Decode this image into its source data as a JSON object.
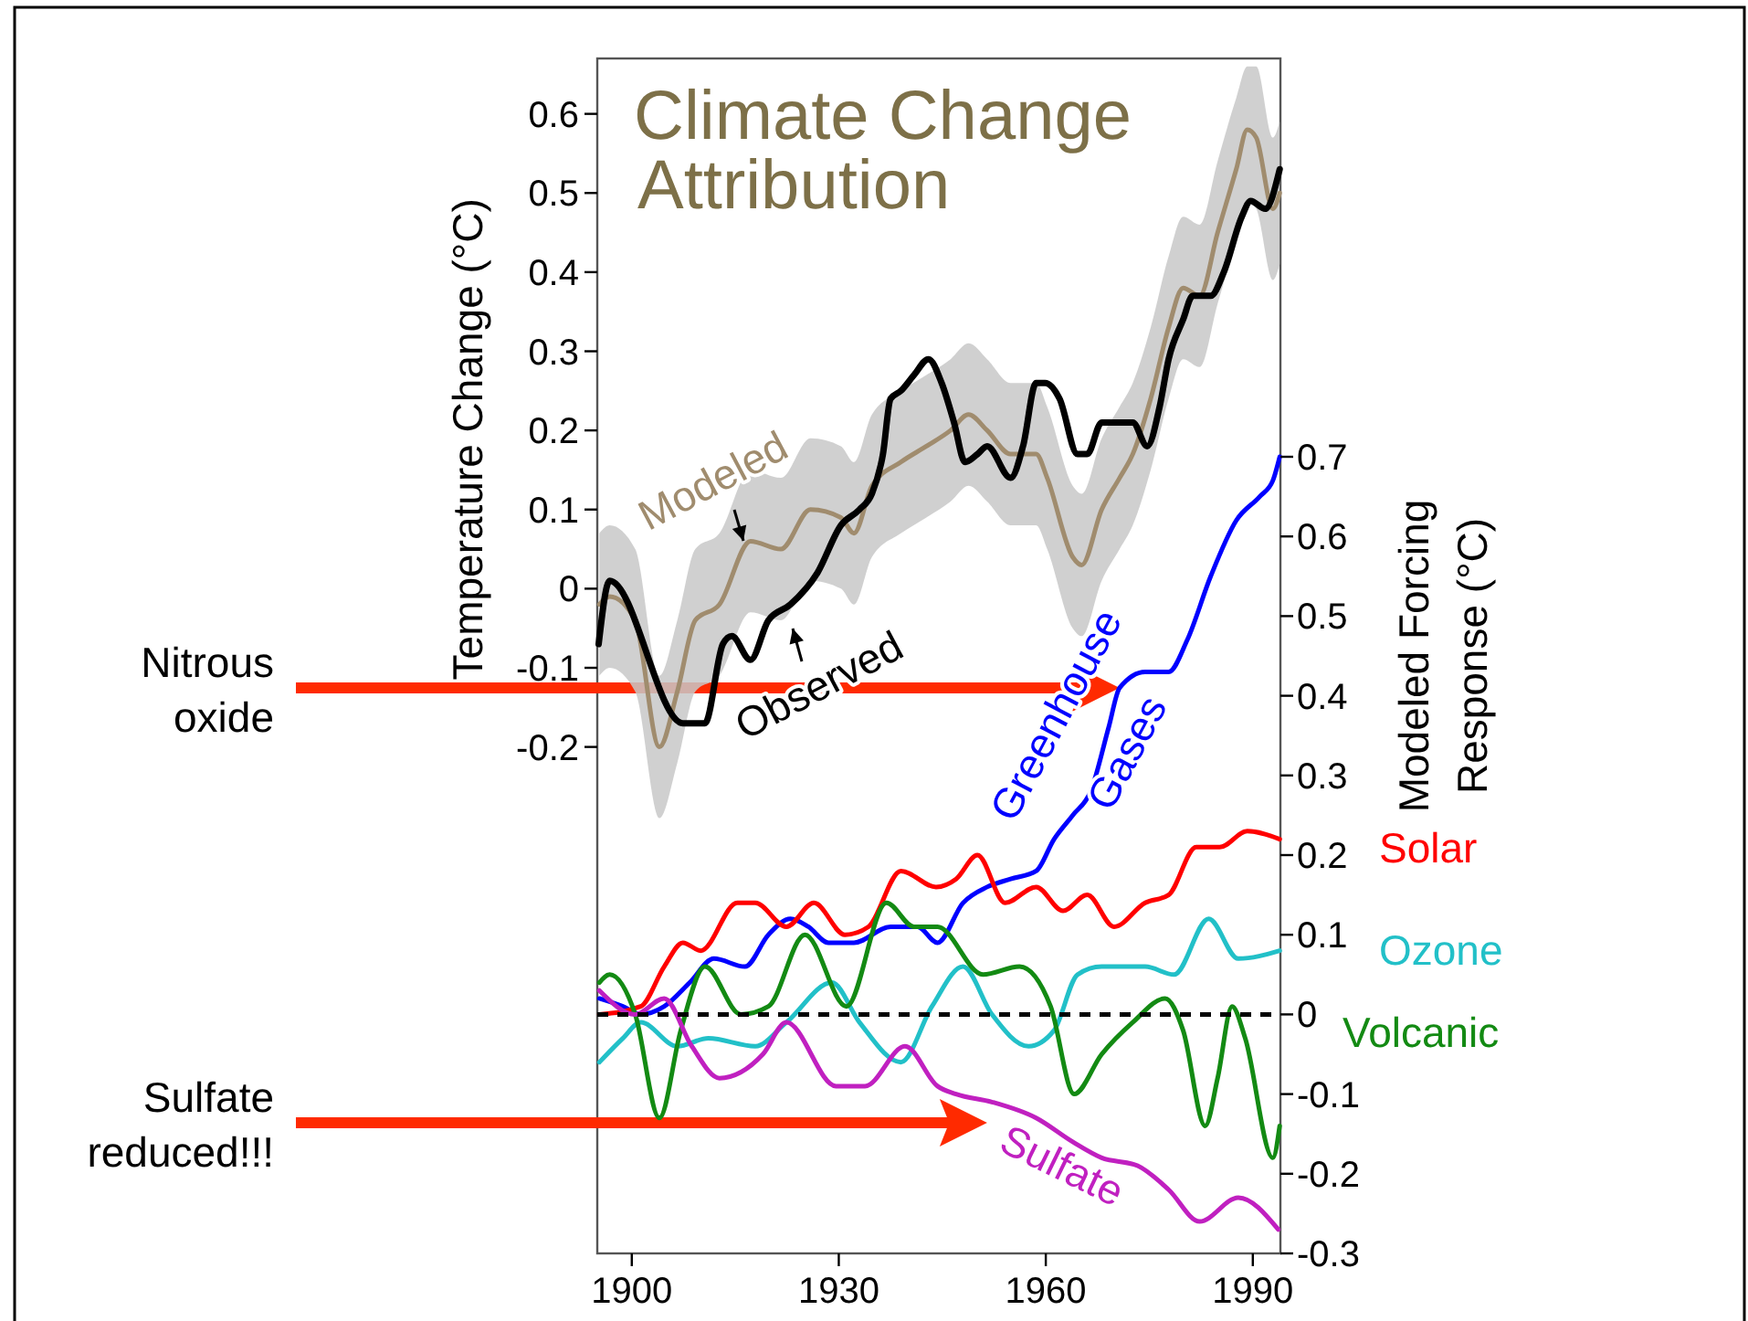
{
  "chart_data": {
    "type": "line",
    "title": "Climate Change Attribution",
    "ylabel": "Temperature Change (°C)",
    "y2label": "Modeled Forcing Response (°C)",
    "xlim": [
      1895,
      1994
    ],
    "xticks": [
      1900,
      1930,
      1960,
      1990
    ],
    "ylim": [
      -0.84,
      0.67
    ],
    "yticks": [
      -0.2,
      -0.1,
      0,
      0.1,
      0.2,
      0.3,
      0.4,
      0.5,
      0.6
    ],
    "y2lim": [
      -0.3,
      1.2
    ],
    "y2ticks": [
      -0.3,
      -0.2,
      -0.1,
      0,
      0.1,
      0.2,
      0.3,
      0.4,
      0.5,
      0.6,
      0.7
    ],
    "grid": false,
    "line_style": "solid",
    "ref_lines": [
      {
        "axis": "y2",
        "value": 0,
        "color": "#000000",
        "line_style": "dashed"
      }
    ],
    "annotations": [
      "Nitrous oxide",
      "Sulfate reduced!!!"
    ],
    "series": [
      {
        "name": "Modeled",
        "color": "#a08c6e",
        "x": [
          1895.3,
          1896.8,
          1900.5,
          1904,
          1906.6,
          1909.2,
          1912.7,
          1917.2,
          1921.6,
          1925.9,
          1930.3,
          1932.2,
          1934.8,
          1939,
          1942.7,
          1946.2,
          1948.8,
          1951.5,
          1954.9,
          1958.6,
          1960.2,
          1963.9,
          1965.2,
          1968.1,
          1970.7,
          1972.6,
          1975.2,
          1977.8,
          1979.9,
          1982.3,
          1984.9,
          1987.6,
          1989.2,
          1990.5,
          1992.9,
          1993.9
        ],
        "values": [
          -0.02,
          -0.01,
          -0.04,
          -0.2,
          -0.13,
          -0.04,
          -0.02,
          0.06,
          0.05,
          0.1,
          0.09,
          0.07,
          0.13,
          0.16,
          0.18,
          0.2,
          0.22,
          0.2,
          0.17,
          0.17,
          0.14,
          0.04,
          0.03,
          0.1,
          0.14,
          0.17,
          0.24,
          0.33,
          0.38,
          0.37,
          0.45,
          0.53,
          0.58,
          0.57,
          0.48,
          0.5
        ],
        "upper": [
          0.07,
          0.08,
          0.05,
          -0.11,
          -0.04,
          0.05,
          0.07,
          0.15,
          0.14,
          0.19,
          0.18,
          0.16,
          0.22,
          0.25,
          0.27,
          0.29,
          0.31,
          0.29,
          0.26,
          0.26,
          0.23,
          0.13,
          0.12,
          0.19,
          0.23,
          0.26,
          0.33,
          0.42,
          0.47,
          0.46,
          0.54,
          0.62,
          0.66,
          0.66,
          0.57,
          0.59
        ],
        "lower": [
          -0.11,
          -0.1,
          -0.13,
          -0.29,
          -0.22,
          -0.13,
          -0.11,
          -0.03,
          -0.04,
          0.01,
          0,
          -0.02,
          0.04,
          0.07,
          0.09,
          0.11,
          0.13,
          0.11,
          0.08,
          0.08,
          0.05,
          -0.05,
          -0.06,
          0.01,
          0.05,
          0.08,
          0.15,
          0.24,
          0.29,
          0.28,
          0.36,
          0.44,
          0.49,
          0.48,
          0.39,
          0.41
        ]
      },
      {
        "name": "Observed",
        "color": "#000000",
        "x": [
          1895.2,
          1896.8,
          1907.4,
          1910.6,
          1913.2,
          1914.5,
          1917.2,
          1919.8,
          1923,
          1926.9,
          1930.3,
          1933,
          1934.8,
          1936.4,
          1937.5,
          1939,
          1940.9,
          1943,
          1944.9,
          1946.7,
          1948.3,
          1950.1,
          1951.5,
          1954.9,
          1956.7,
          1958.6,
          1959.9,
          1962,
          1964.6,
          1966,
          1968.1,
          1969.9,
          1972.6,
          1974.7,
          1976.5,
          1977.8,
          1979.9,
          1981.3,
          1983.9,
          1985.8,
          1988.4,
          1989.7,
          1991.8,
          1993.9
        ],
        "values": [
          -0.07,
          0.01,
          -0.17,
          -0.17,
          -0.07,
          -0.06,
          -0.09,
          -0.04,
          -0.02,
          0.02,
          0.08,
          0.1,
          0.12,
          0.17,
          0.24,
          0.25,
          0.27,
          0.29,
          0.26,
          0.21,
          0.16,
          0.17,
          0.18,
          0.14,
          0.18,
          0.26,
          0.26,
          0.24,
          0.17,
          0.17,
          0.21,
          0.21,
          0.21,
          0.18,
          0.23,
          0.29,
          0.34,
          0.37,
          0.37,
          0.4,
          0.47,
          0.49,
          0.48,
          0.53
        ]
      },
      {
        "name": "Greenhouse Gases",
        "color": "#0000ff",
        "axis": "y2",
        "x": [
          1895.3,
          1898.7,
          1901.3,
          1904.7,
          1908.4,
          1911.9,
          1916.4,
          1919.8,
          1923,
          1925.6,
          1928.5,
          1932.2,
          1937.5,
          1941.4,
          1944.3,
          1948,
          1951.5,
          1954.9,
          1958.6,
          1961.2,
          1963.9,
          1966.5,
          1969.1,
          1970.7,
          1974.4,
          1977.8,
          1980.5,
          1983.9,
          1987.6,
          1991,
          1992.9,
          1993.9
        ],
        "values": [
          0.02,
          0.01,
          0,
          0.01,
          0.04,
          0.07,
          0.06,
          0.1,
          0.12,
          0.11,
          0.09,
          0.09,
          0.11,
          0.11,
          0.09,
          0.14,
          0.16,
          0.17,
          0.18,
          0.22,
          0.25,
          0.28,
          0.36,
          0.41,
          0.43,
          0.43,
          0.47,
          0.55,
          0.62,
          0.65,
          0.67,
          0.7
        ]
      },
      {
        "name": "Solar",
        "color": "#ff0000",
        "axis": "y2",
        "x": [
          1895.3,
          1901.3,
          1904.7,
          1907.4,
          1910,
          1915.3,
          1917.9,
          1922.4,
          1926.4,
          1930.9,
          1934.3,
          1939,
          1944.1,
          1947,
          1950.1,
          1954.1,
          1958.6,
          1962.5,
          1966,
          1969.9,
          1974.4,
          1977.8,
          1981.8,
          1985.2,
          1989.2,
          1993.9
        ],
        "values": [
          0,
          0.01,
          0.06,
          0.09,
          0.08,
          0.14,
          0.14,
          0.11,
          0.14,
          0.1,
          0.11,
          0.18,
          0.16,
          0.17,
          0.2,
          0.14,
          0.16,
          0.13,
          0.15,
          0.11,
          0.14,
          0.15,
          0.21,
          0.21,
          0.23,
          0.22
        ]
      },
      {
        "name": "Ozone",
        "color": "#22c0c8",
        "axis": "y2",
        "x": [
          1895.3,
          1898.7,
          1901.3,
          1906.6,
          1911.1,
          1917.9,
          1922.4,
          1929,
          1933,
          1939,
          1943.5,
          1948,
          1952.2,
          1957.5,
          1961.2,
          1964.6,
          1968.1,
          1974.4,
          1978.6,
          1983.6,
          1987.9,
          1993.9
        ],
        "values": [
          -0.06,
          -0.03,
          -0.01,
          -0.04,
          -0.03,
          -0.04,
          -0.01,
          0.04,
          -0.01,
          -0.06,
          0.01,
          0.06,
          0,
          -0.04,
          -0.02,
          0.05,
          0.06,
          0.06,
          0.05,
          0.12,
          0.07,
          0.08
        ]
      },
      {
        "name": "Volcanic",
        "color": "#138a13",
        "axis": "y2",
        "x": [
          1895.3,
          1896.8,
          1900.5,
          1904,
          1907.1,
          1910.6,
          1915.8,
          1919.8,
          1925.1,
          1931.1,
          1936.9,
          1940.9,
          1944.3,
          1950.9,
          1956.2,
          1960.7,
          1964.1,
          1968.1,
          1972.6,
          1977.3,
          1979.9,
          1983.1,
          1984.9,
          1987,
          1988.9,
          1992.9,
          1993.9
        ],
        "values": [
          0.04,
          0.05,
          0,
          -0.13,
          -0.02,
          0.06,
          0,
          0.01,
          0.1,
          0.01,
          0.14,
          0.11,
          0.11,
          0.05,
          0.06,
          0.01,
          -0.1,
          -0.05,
          -0.01,
          0.02,
          -0.02,
          -0.14,
          -0.08,
          0.01,
          -0.03,
          -0.18,
          -0.14
        ]
      },
      {
        "name": "Sulfate",
        "color": "#c020c0",
        "axis": "y2",
        "x": [
          1895.3,
          1900.5,
          1904.7,
          1908.7,
          1912.7,
          1919,
          1922.4,
          1929.6,
          1933.8,
          1939.6,
          1944.3,
          1947,
          1952.2,
          1958.6,
          1963.9,
          1968.1,
          1973.3,
          1977.8,
          1982.3,
          1987.9,
          1993.7
        ],
        "values": [
          0.03,
          0,
          0.02,
          -0.04,
          -0.08,
          -0.05,
          -0.01,
          -0.09,
          -0.09,
          -0.04,
          -0.09,
          -0.1,
          -0.11,
          -0.13,
          -0.16,
          -0.18,
          -0.19,
          -0.22,
          -0.26,
          -0.23,
          -0.27
        ]
      }
    ]
  }
}
